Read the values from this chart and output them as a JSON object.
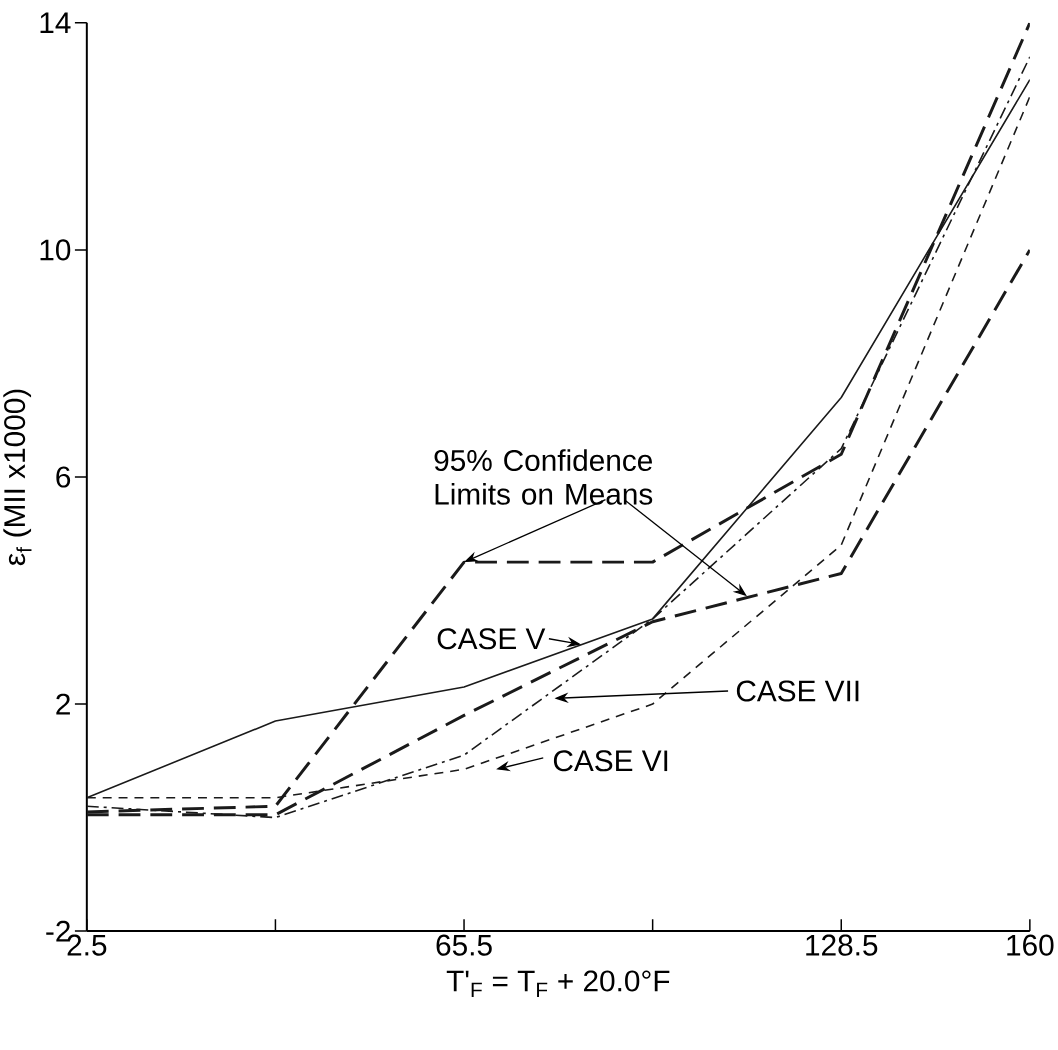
{
  "chart_data": {
    "type": "line",
    "xlabel": "T'$_{F}$ = T$_{F}$ + 20.0°F",
    "ylabel": "ε$_{f}$ (MII x1000)",
    "categories": [
      "2.5",
      null,
      "65.5",
      null,
      "128.5",
      "160"
    ],
    "ylim": [
      -2,
      14
    ],
    "yticks": [
      -2,
      2,
      6,
      10,
      14
    ],
    "grid": false,
    "series": [
      {
        "color": "#1a1a1a",
        "line_style": "solid",
        "values": [
          0.35,
          1.7,
          2.3,
          3.5,
          7.4,
          13.0
        ]
      },
      {
        "color": "#1a1a1a",
        "line_style": "dashed",
        "values": [
          0.1,
          0.2,
          4.5,
          4.5,
          6.4,
          14.0
        ]
      },
      {
        "color": "#1a1a1a",
        "line_style": "dashed",
        "values": [
          0.05,
          0.05,
          1.8,
          3.45,
          4.3,
          10.0
        ]
      },
      {
        "color": "#1a1a1a",
        "line_style": "dashdot",
        "values": [
          0.2,
          0.0,
          1.1,
          3.5,
          6.5,
          13.4
        ]
      },
      {
        "color": "#1a1a1a",
        "line_style": "dotted",
        "values": [
          0.35,
          0.35,
          0.85,
          2.0,
          4.8,
          12.7
        ]
      }
    ],
    "annotations": [
      {
        "text": "95% Confidence Limits on Means",
        "x": "65.5",
        "y": 4.5
      },
      "CASE V",
      "CASE VII",
      "CASE VI"
    ]
  }
}
